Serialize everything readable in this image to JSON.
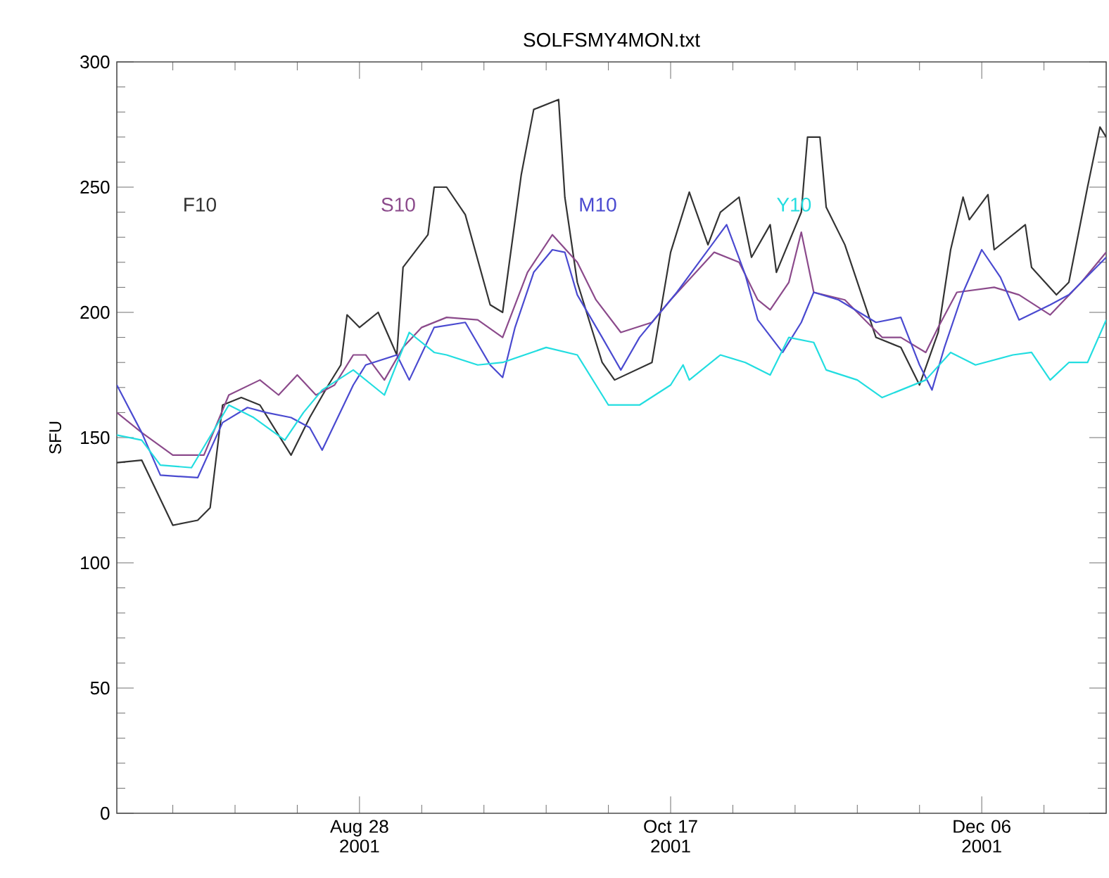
{
  "chart_data": {
    "type": "line",
    "title": "SOLFSMY4MON.txt",
    "ylabel": "SFU",
    "xlim": [
      "2001-07-20",
      "2001-12-26"
    ],
    "ylim": [
      0,
      300
    ],
    "xticks": [
      {
        "value": "2001-07-29",
        "label": null
      },
      {
        "value": "2001-08-08",
        "label": null
      },
      {
        "value": "2001-08-18",
        "label": null
      },
      {
        "value": "2001-08-28",
        "label": "Aug 28 2001"
      },
      {
        "value": "2001-09-07",
        "label": null
      },
      {
        "value": "2001-09-17",
        "label": null
      },
      {
        "value": "2001-09-27",
        "label": null
      },
      {
        "value": "2001-10-07",
        "label": null
      },
      {
        "value": "2001-10-17",
        "label": "Oct 17 2001"
      },
      {
        "value": "2001-10-27",
        "label": null
      },
      {
        "value": "2001-11-06",
        "label": null
      },
      {
        "value": "2001-11-16",
        "label": null
      },
      {
        "value": "2001-11-26",
        "label": null
      },
      {
        "value": "2001-12-06",
        "label": "Dec 06 2001"
      },
      {
        "value": "2001-12-16",
        "label": null
      }
    ],
    "yticks": [
      0,
      {
        "value": 10,
        "label": null
      },
      {
        "value": 20,
        "label": null
      },
      {
        "value": 30,
        "label": null
      },
      {
        "value": 40,
        "label": null
      },
      50,
      {
        "value": 60,
        "label": null
      },
      {
        "value": 70,
        "label": null
      },
      {
        "value": 80,
        "label": null
      },
      {
        "value": 90,
        "label": null
      },
      100,
      {
        "value": 110,
        "label": null
      },
      {
        "value": 120,
        "label": null
      },
      {
        "value": 130,
        "label": null
      },
      {
        "value": 140,
        "label": null
      },
      150,
      {
        "value": 160,
        "label": null
      },
      {
        "value": 170,
        "label": null
      },
      {
        "value": 180,
        "label": null
      },
      {
        "value": 190,
        "label": null
      },
      200,
      {
        "value": 210,
        "label": null
      },
      {
        "value": 220,
        "label": null
      },
      {
        "value": 230,
        "label": null
      },
      {
        "value": 240,
        "label": null
      },
      250,
      {
        "value": 260,
        "label": null
      },
      {
        "value": 270,
        "label": null
      },
      {
        "value": 280,
        "label": null
      },
      {
        "value": 290,
        "label": null
      },
      300
    ],
    "grid": false,
    "marker": "none",
    "line_style": "solid",
    "series": [
      {
        "name": "F10",
        "color": "#333333",
        "x": [
          "2001-07-20",
          "2001-07-24",
          "2001-07-29",
          "2001-08-02",
          "2001-08-04",
          "2001-08-06",
          "2001-08-09",
          "2001-08-12",
          "2001-08-17",
          "2001-08-20",
          "2001-08-23",
          "2001-08-25",
          "2001-08-26",
          "2001-08-28",
          "2001-08-31",
          "2001-09-03",
          "2001-09-04",
          "2001-09-08",
          "2001-09-09",
          "2001-09-11",
          "2001-09-14",
          "2001-09-18",
          "2001-09-20",
          "2001-09-23",
          "2001-09-25",
          "2001-09-29",
          "2001-09-30",
          "2001-10-02",
          "2001-10-06",
          "2001-10-08",
          "2001-10-14",
          "2001-10-17",
          "2001-10-20",
          "2001-10-23",
          "2001-10-25",
          "2001-10-28",
          "2001-10-30",
          "2001-11-02",
          "2001-11-03",
          "2001-11-07",
          "2001-11-08",
          "2001-11-10",
          "2001-11-11",
          "2001-11-14",
          "2001-11-19",
          "2001-11-23",
          "2001-11-26",
          "2001-11-29",
          "2001-12-01",
          "2001-12-03",
          "2001-12-04",
          "2001-12-07",
          "2001-12-08",
          "2001-12-13",
          "2001-12-14",
          "2001-12-18",
          "2001-12-20",
          "2001-12-23",
          "2001-12-25",
          "2001-12-26"
        ],
        "values": [
          140,
          141,
          115,
          117,
          122,
          163,
          166,
          163,
          143,
          158,
          171,
          179,
          199,
          194,
          200,
          183,
          218,
          231,
          250,
          250,
          239,
          203,
          200,
          255,
          281,
          285,
          246,
          212,
          180,
          173,
          180,
          224,
          248,
          227,
          240,
          246,
          222,
          235,
          216,
          240,
          270,
          270,
          242,
          227,
          190,
          186,
          171,
          192,
          225,
          246,
          237,
          247,
          225,
          235,
          218,
          207,
          212,
          250,
          274,
          270
        ]
      },
      {
        "name": "S10",
        "color": "#8b4a8b",
        "x": [
          "2001-07-20",
          "2001-07-24",
          "2001-07-29",
          "2001-08-03",
          "2001-08-07",
          "2001-08-12",
          "2001-08-15",
          "2001-08-18",
          "2001-08-21",
          "2001-08-24",
          "2001-08-27",
          "2001-08-29",
          "2001-09-01",
          "2001-09-04",
          "2001-09-07",
          "2001-09-11",
          "2001-09-16",
          "2001-09-20",
          "2001-09-24",
          "2001-09-28",
          "2001-10-02",
          "2001-10-05",
          "2001-10-09",
          "2001-10-14",
          "2001-10-17",
          "2001-10-24",
          "2001-10-28",
          "2001-10-31",
          "2001-11-02",
          "2001-11-05",
          "2001-11-07",
          "2001-11-09",
          "2001-11-14",
          "2001-11-20",
          "2001-11-23",
          "2001-11-27",
          "2001-11-29",
          "2001-12-02",
          "2001-12-08",
          "2001-12-12",
          "2001-12-17",
          "2001-12-22",
          "2001-12-26"
        ],
        "values": [
          160,
          152,
          143,
          143,
          167,
          173,
          167,
          175,
          167,
          171,
          183,
          183,
          173,
          186,
          194,
          198,
          197,
          190,
          216,
          231,
          220,
          205,
          192,
          196,
          205,
          224,
          220,
          205,
          201,
          212,
          232,
          208,
          205,
          190,
          190,
          184,
          194,
          208,
          210,
          207,
          199,
          212,
          224
        ]
      },
      {
        "name": "M10",
        "color": "#4a4ad0",
        "x": [
          "2001-07-20",
          "2001-07-24",
          "2001-07-27",
          "2001-08-02",
          "2001-08-06",
          "2001-08-10",
          "2001-08-13",
          "2001-08-17",
          "2001-08-20",
          "2001-08-22",
          "2001-08-27",
          "2001-08-29",
          "2001-09-03",
          "2001-09-05",
          "2001-09-09",
          "2001-09-14",
          "2001-09-18",
          "2001-09-20",
          "2001-09-22",
          "2001-09-25",
          "2001-09-28",
          "2001-09-30",
          "2001-10-02",
          "2001-10-06",
          "2001-10-09",
          "2001-10-12",
          "2001-10-14",
          "2001-10-18",
          "2001-10-26",
          "2001-10-29",
          "2001-10-31",
          "2001-11-04",
          "2001-11-07",
          "2001-11-09",
          "2001-11-13",
          "2001-11-19",
          "2001-11-23",
          "2001-11-26",
          "2001-11-28",
          "2001-11-30",
          "2001-12-03",
          "2001-12-06",
          "2001-12-09",
          "2001-12-12",
          "2001-12-17",
          "2001-12-20",
          "2001-12-26"
        ],
        "values": [
          171,
          152,
          135,
          134,
          156,
          162,
          160,
          158,
          154,
          145,
          171,
          179,
          183,
          173,
          194,
          196,
          179,
          174,
          194,
          216,
          225,
          224,
          207,
          190,
          177,
          190,
          196,
          208,
          235,
          215,
          197,
          184,
          196,
          208,
          205,
          196,
          198,
          179,
          169,
          186,
          208,
          225,
          214,
          197,
          203,
          207,
          222
        ]
      },
      {
        "name": "Y10",
        "color": "#22dde0",
        "x": [
          "2001-07-20",
          "2001-07-24",
          "2001-07-27",
          "2001-08-01",
          "2001-08-07",
          "2001-08-11",
          "2001-08-16",
          "2001-08-19",
          "2001-08-22",
          "2001-08-27",
          "2001-09-01",
          "2001-09-05",
          "2001-09-09",
          "2001-09-11",
          "2001-09-16",
          "2001-09-20",
          "2001-09-27",
          "2001-10-02",
          "2001-10-07",
          "2001-10-12",
          "2001-10-17",
          "2001-10-19",
          "2001-10-20",
          "2001-10-25",
          "2001-10-29",
          "2001-11-02",
          "2001-11-05",
          "2001-11-09",
          "2001-11-11",
          "2001-11-16",
          "2001-11-20",
          "2001-11-23",
          "2001-11-27",
          "2001-12-01",
          "2001-12-05",
          "2001-12-11",
          "2001-12-14",
          "2001-12-17",
          "2001-12-20",
          "2001-12-23",
          "2001-12-26"
        ],
        "values": [
          151,
          149,
          139,
          138,
          163,
          158,
          149,
          160,
          169,
          177,
          167,
          192,
          184,
          183,
          179,
          180,
          186,
          183,
          163,
          163,
          171,
          179,
          173,
          183,
          180,
          175,
          190,
          188,
          177,
          173,
          166,
          169,
          173,
          184,
          179,
          183,
          184,
          173,
          180,
          180,
          197
        ]
      }
    ]
  }
}
